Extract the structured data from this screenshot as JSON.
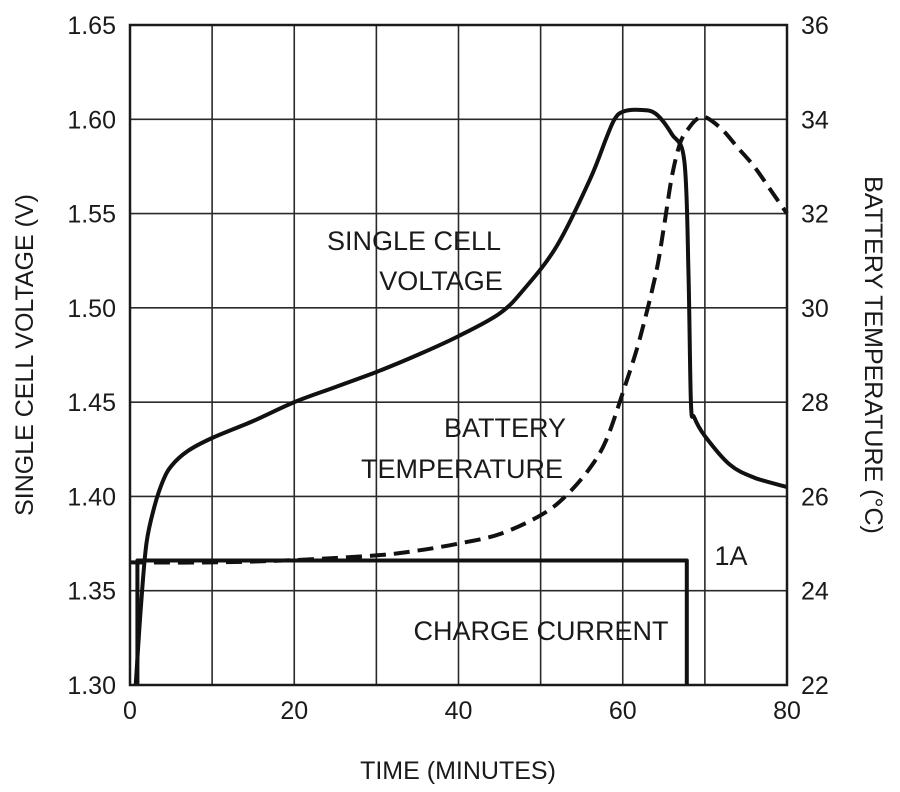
{
  "chart_data": {
    "type": "line",
    "title": "",
    "xlabel": "TIME (MINUTES)",
    "ylabel_left": "SINGLE CELL VOLTAGE (V)",
    "ylabel_right": "BATTERY TEMPERATURE (°C)",
    "xlim": [
      0,
      80
    ],
    "ylim_left": [
      1.3,
      1.65
    ],
    "ylim_right": [
      22,
      36
    ],
    "grid": true,
    "x_ticks": [
      "0",
      "20",
      "40",
      "60",
      "80"
    ],
    "x_tick_values": [
      0,
      20,
      40,
      60,
      80
    ],
    "y_left_ticks": [
      "1.30",
      "1.35",
      "1.40",
      "1.45",
      "1.50",
      "1.55",
      "1.60",
      "1.65"
    ],
    "y_left_tick_values": [
      1.3,
      1.35,
      1.4,
      1.45,
      1.5,
      1.55,
      1.6,
      1.65
    ],
    "y_right_ticks": [
      "22",
      "24",
      "26",
      "28",
      "30",
      "32",
      "34",
      "36"
    ],
    "y_right_tick_values": [
      22,
      24,
      26,
      28,
      30,
      32,
      34,
      36
    ],
    "series": [
      {
        "name": "SINGLE CELL VOLTAGE",
        "axis": "left",
        "style": "solid",
        "x": [
          0.7,
          1.3,
          2,
          3,
          4,
          5,
          7,
          10,
          15,
          20,
          25,
          30,
          35,
          40,
          45,
          48,
          52,
          56,
          58,
          59,
          60,
          62,
          64,
          66,
          67.5,
          68,
          68.3,
          68.7,
          70,
          73,
          76,
          80
        ],
        "y": [
          1.3,
          1.34,
          1.375,
          1.395,
          1.408,
          1.416,
          1.424,
          1.431,
          1.44,
          1.45,
          1.458,
          1.466,
          1.475,
          1.485,
          1.497,
          1.51,
          1.533,
          1.568,
          1.59,
          1.6,
          1.604,
          1.605,
          1.603,
          1.592,
          1.578,
          1.52,
          1.45,
          1.442,
          1.432,
          1.417,
          1.41,
          1.405
        ]
      },
      {
        "name": "BATTERY TEMPERATURE",
        "axis": "right",
        "style": "dashed",
        "x": [
          0,
          10,
          20,
          30,
          35,
          40,
          45,
          50,
          53,
          56,
          58,
          60,
          62,
          64,
          65,
          66,
          67,
          68,
          69,
          70,
          72,
          74,
          76,
          78,
          80
        ],
        "y": [
          24.6,
          24.6,
          24.65,
          24.75,
          24.85,
          25.0,
          25.2,
          25.6,
          26.0,
          26.6,
          27.2,
          28.2,
          29.3,
          30.7,
          31.7,
          32.8,
          33.5,
          33.8,
          34.0,
          34.05,
          33.8,
          33.4,
          33.0,
          32.5,
          32.0
        ]
      },
      {
        "name": "CHARGE CURRENT",
        "axis": "left",
        "style": "solid",
        "x": [
          0.9,
          0.9,
          67.8,
          67.8
        ],
        "y": [
          1.3,
          1.366,
          1.366,
          1.3
        ]
      }
    ],
    "annotations": {
      "voltage_line1": "SINGLE CELL",
      "voltage_line2": "VOLTAGE",
      "temp_line1": "BATTERY",
      "temp_line2": "TEMPERATURE",
      "current_label": "CHARGE CURRENT",
      "current_value": "1A"
    }
  }
}
